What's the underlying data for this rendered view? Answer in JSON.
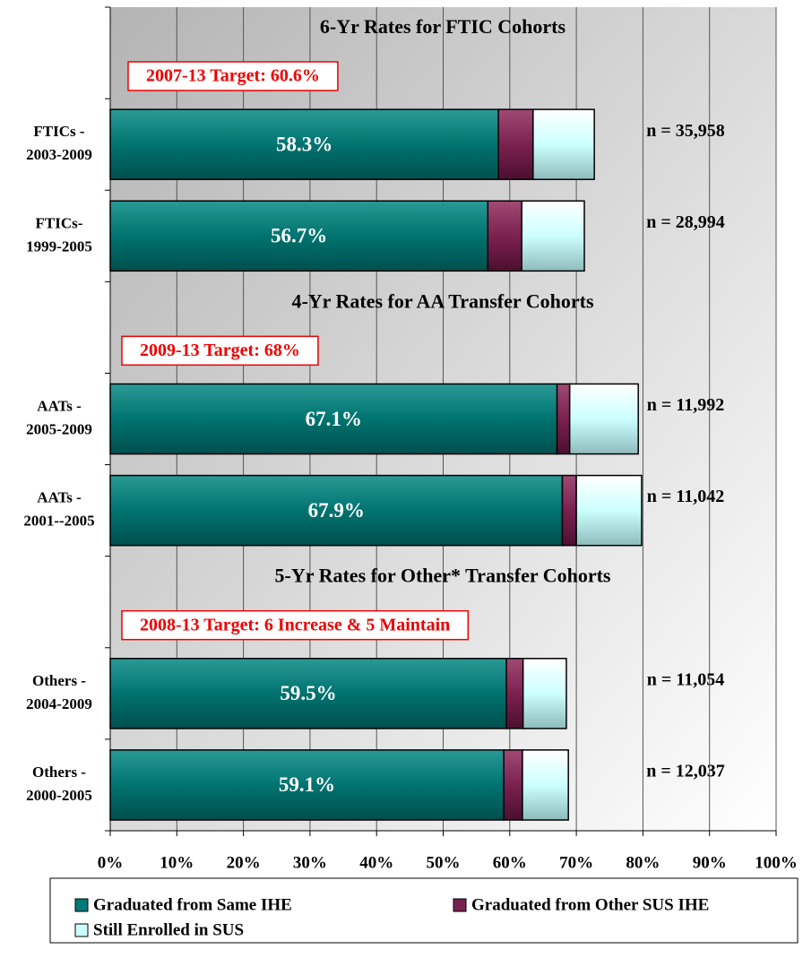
{
  "chart_data": {
    "type": "stacked-barh",
    "categories": [
      null,
      [
        "FTICs -",
        "2003-2009"
      ],
      [
        "FTICs-",
        "1999-2005"
      ],
      null,
      [
        "AATs -",
        "2005-2009"
      ],
      [
        "AATs -",
        "2001--2005"
      ],
      null,
      [
        "Others -",
        "2004-2009"
      ],
      [
        "Others -",
        "2000-2005"
      ]
    ],
    "series": [
      {
        "name": "Graduated from Same IHE",
        "color": "#007b78",
        "values": [
          null,
          58.3,
          56.7,
          null,
          67.1,
          67.9,
          null,
          59.5,
          59.1
        ],
        "value_labels": [
          null,
          "58.3%",
          "56.7%",
          null,
          "67.1%",
          "67.9%",
          null,
          "59.5%",
          "59.1%"
        ]
      },
      {
        "name": "Graduated from Other SUS IHE",
        "color": "#7b2150",
        "values": [
          null,
          5.2,
          5.1,
          null,
          1.9,
          2.1,
          null,
          2.5,
          2.8
        ]
      },
      {
        "name": "Still Enrolled in SUS",
        "color": "#ccffff",
        "values": [
          null,
          9.2,
          9.4,
          null,
          10.3,
          9.8,
          null,
          6.5,
          6.9
        ]
      }
    ],
    "n_labels": [
      null,
      "n = 35,958",
      "n = 28,994",
      null,
      "n = 11,992",
      "n = 11,042",
      null,
      "n = 11,054",
      "n = 12,037"
    ],
    "sections": [
      {
        "title": "6-Yr Rates for FTIC Cohorts",
        "target": "2007-13 Target: 60.6%"
      },
      {
        "title": "4-Yr Rates for AA Transfer Cohorts",
        "target": "2009-13 Target:  68%"
      },
      {
        "title": "5-Yr Rates for Other* Transfer Cohorts",
        "target": "2008-13 Target:  6 Increase & 5 Maintain"
      }
    ],
    "xlim": [
      0,
      100
    ],
    "xticks": [
      {
        "value": 0,
        "label": "0%"
      },
      {
        "value": 10,
        "label": "10%"
      },
      {
        "value": 20,
        "label": "20%"
      },
      {
        "value": 30,
        "label": "30%"
      },
      {
        "value": 40,
        "label": "40%"
      },
      {
        "value": 50,
        "label": "50%"
      },
      {
        "value": 60,
        "label": "60%"
      },
      {
        "value": 70,
        "label": "70%"
      },
      {
        "value": 80,
        "label": "80%"
      },
      {
        "value": 90,
        "label": "90%"
      },
      {
        "value": 100,
        "label": "100%"
      }
    ],
    "grid": true
  }
}
